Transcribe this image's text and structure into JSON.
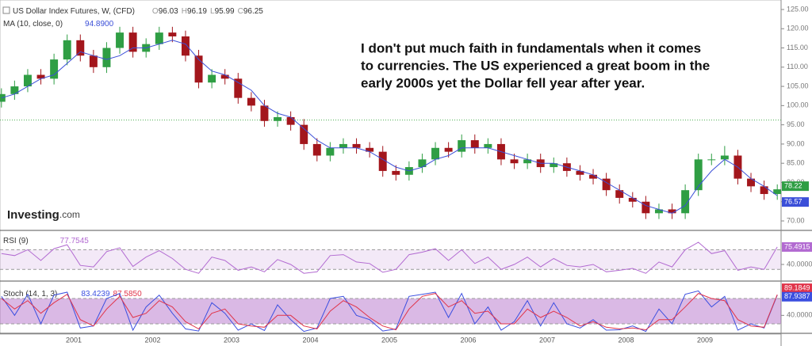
{
  "chart_data": [
    {
      "type": "candlestick",
      "title": "US Dollar Index Futures, W, (CFD)",
      "header_values": [
        {
          "label": "O",
          "value": 96.03
        },
        {
          "label": "H",
          "value": 96.19
        },
        {
          "label": "L",
          "value": 95.99
        },
        {
          "label": "C",
          "value": 96.25
        }
      ],
      "categories": [
        null,
        null,
        null,
        null,
        null,
        null,
        "2001",
        null,
        null,
        null,
        null,
        null,
        "2002",
        null,
        null,
        null,
        null,
        null,
        "2003",
        null,
        null,
        null,
        null,
        null,
        "2004",
        null,
        null,
        null,
        null,
        null,
        "2005",
        null,
        null,
        null,
        null,
        null,
        "2006",
        null,
        null,
        null,
        null,
        null,
        "2007",
        null,
        null,
        null,
        null,
        null,
        "2008",
        null,
        null,
        null,
        null,
        null,
        "2009",
        null,
        null,
        null,
        null,
        null
      ],
      "open": [
        101,
        103,
        105,
        108,
        107,
        112,
        117,
        113,
        110,
        115,
        119,
        114,
        116,
        119,
        118,
        113,
        106,
        108,
        107,
        102,
        100,
        96,
        97,
        95,
        90,
        87,
        89,
        90,
        89,
        88,
        83,
        82,
        84,
        86,
        89,
        88,
        91,
        89,
        90,
        86,
        85,
        86,
        84,
        85,
        83,
        82,
        81,
        78,
        76,
        75,
        72,
        73,
        72,
        78,
        86,
        86,
        87,
        81,
        79,
        77
      ],
      "high": [
        104.5,
        106.5,
        109.5,
        109.5,
        113.5,
        118.5,
        118.5,
        114.5,
        116.5,
        120.5,
        120.5,
        117.5,
        120.5,
        120.5,
        119.5,
        114.5,
        109.5,
        109.5,
        108.5,
        103.5,
        101.5,
        98.5,
        98.5,
        96.5,
        91.5,
        90.5,
        91.5,
        91.5,
        90.5,
        89.5,
        84.5,
        85.5,
        87.5,
        90.5,
        90.5,
        92.5,
        92.5,
        91.5,
        91.5,
        87.5,
        87.5,
        87.5,
        86.5,
        86.5,
        84.5,
        83.5,
        82.5,
        79.5,
        77.5,
        76.5,
        74.5,
        74.5,
        79.5,
        87.5,
        87.5,
        89.5,
        88.5,
        82.5,
        80.5,
        79.5
      ],
      "low": [
        99.5,
        101.5,
        103.5,
        105.5,
        105.5,
        110.5,
        111.5,
        108.5,
        108.5,
        113.5,
        112.5,
        112.5,
        114.5,
        116.5,
        111.5,
        104.5,
        104.5,
        105.5,
        100.5,
        98.5,
        94.5,
        94.5,
        93.5,
        88.5,
        85.5,
        85.5,
        87.5,
        87.5,
        86.5,
        81.5,
        80.5,
        80.5,
        82.5,
        84.5,
        86.5,
        86.5,
        87.5,
        87.5,
        84.5,
        83.5,
        83.5,
        82.5,
        82.5,
        81.5,
        80.5,
        79.5,
        76.5,
        74.5,
        73.5,
        70.5,
        70.5,
        70.5,
        70.5,
        76.5,
        84.5,
        84.5,
        79.5,
        77.5,
        75.5,
        75.5
      ],
      "close": [
        103,
        105,
        108,
        107,
        112,
        117,
        113,
        110,
        115,
        119,
        114,
        116,
        119,
        118,
        113,
        106,
        108,
        107,
        102,
        100,
        96,
        97,
        95,
        90,
        87,
        89,
        90,
        89,
        88,
        83,
        82,
        84,
        86,
        89,
        88,
        91,
        89,
        90,
        86,
        85,
        86,
        84,
        85,
        83,
        82,
        81,
        78,
        76,
        75,
        72,
        73,
        72,
        78,
        86,
        86,
        87,
        81,
        79,
        77,
        78.22
      ],
      "up_color": "#2f9e44",
      "down_color": "#a3161c",
      "series": [
        {
          "name": "MA (10, close, 0)",
          "header_value": "94.8900",
          "color": "#3b4fd8",
          "values": [
            102,
            103,
            105,
            107,
            108,
            111,
            114,
            113,
            112,
            113,
            115,
            115,
            116,
            117,
            116,
            112,
            109,
            108,
            106,
            104,
            100,
            98,
            97,
            94,
            91,
            89,
            89,
            89,
            88,
            86,
            84,
            83,
            84,
            86,
            87,
            89,
            89,
            89,
            88,
            87,
            86,
            85,
            85,
            84,
            83,
            82,
            80,
            78,
            76,
            74,
            73,
            72,
            74,
            79,
            83,
            86,
            84,
            81,
            79,
            76.57
          ]
        }
      ],
      "price_line": 96.25,
      "price_line_color": "#4caf50",
      "annotation_lines": [
        "I don't put much faith in fundamentals when it comes",
        "to currencies. The US experienced a great boom in the",
        "early 2000s yet the Dollar fell year after year."
      ],
      "logo": [
        "Investing",
        ".com"
      ],
      "ylim": [
        67.74,
        127.47
      ],
      "yticks": [
        {
          "value": 125,
          "label": "125.00"
        },
        {
          "value": 120,
          "label": "120.00"
        },
        {
          "value": 115,
          "label": "115.00"
        },
        {
          "value": 110,
          "label": "110.00"
        },
        {
          "value": 105,
          "label": "105.00"
        },
        {
          "value": 100,
          "label": "100.00"
        },
        {
          "value": 95,
          "label": "95.00"
        },
        {
          "value": 90,
          "label": "90.00"
        },
        {
          "value": 85,
          "label": "85.00"
        },
        {
          "value": 80,
          "label": "80.00"
        },
        {
          "value": 75,
          "label": "75.00"
        },
        {
          "value": 70,
          "label": "70.00"
        }
      ]
    },
    {
      "type": "line",
      "title": "RSI (9)",
      "header_value": "77.7545",
      "band": [
        30,
        70
      ],
      "band_color": "#c58fd6",
      "series": [
        {
          "color": "#b26ad1",
          "values": [
            62,
            58,
            70,
            48,
            72,
            80,
            38,
            35,
            66,
            74,
            36,
            55,
            68,
            52,
            30,
            22,
            55,
            48,
            28,
            35,
            25,
            50,
            40,
            22,
            25,
            58,
            60,
            45,
            42,
            24,
            30,
            60,
            65,
            72,
            48,
            70,
            42,
            55,
            30,
            40,
            55,
            35,
            52,
            38,
            35,
            40,
            25,
            28,
            32,
            22,
            45,
            35,
            70,
            85,
            62,
            68,
            28,
            35,
            30,
            75.4915
          ]
        }
      ],
      "ylim": [
        9.4,
        106
      ],
      "yticks": [
        {
          "value": 40,
          "label": "40.0000"
        }
      ]
    },
    {
      "type": "line",
      "title": "Stoch (14, 1, 3)",
      "band": [
        20,
        80
      ],
      "band_color": "#a24fbf",
      "series": [
        {
          "header_value": "83.4239",
          "color": "#3b4fe0",
          "values": [
            85,
            40,
            90,
            20,
            88,
            95,
            10,
            15,
            80,
            92,
            5,
            60,
            88,
            45,
            8,
            3,
            70,
            45,
            5,
            20,
            4,
            65,
            30,
            2,
            10,
            80,
            85,
            40,
            30,
            3,
            8,
            85,
            90,
            95,
            35,
            92,
            20,
            60,
            5,
            25,
            75,
            15,
            70,
            20,
            10,
            30,
            5,
            6,
            15,
            2,
            55,
            20,
            90,
            98,
            60,
            85,
            5,
            20,
            10,
            87.9387
          ]
        },
        {
          "header_value": "87.5850",
          "color": "#e0344a",
          "values": [
            80,
            55,
            75,
            45,
            70,
            90,
            30,
            15,
            55,
            85,
            35,
            45,
            75,
            60,
            25,
            8,
            45,
            55,
            20,
            15,
            12,
            40,
            40,
            15,
            8,
            50,
            75,
            60,
            35,
            15,
            6,
            55,
            85,
            92,
            60,
            75,
            45,
            50,
            20,
            20,
            55,
            35,
            50,
            35,
            15,
            25,
            12,
            8,
            10,
            6,
            30,
            30,
            60,
            92,
            80,
            75,
            30,
            15,
            12,
            89.1849
          ]
        }
      ],
      "ylim": [
        -0.6,
        117.5
      ],
      "yticks": [
        {
          "value": 40,
          "label": "40.0000"
        }
      ]
    }
  ]
}
